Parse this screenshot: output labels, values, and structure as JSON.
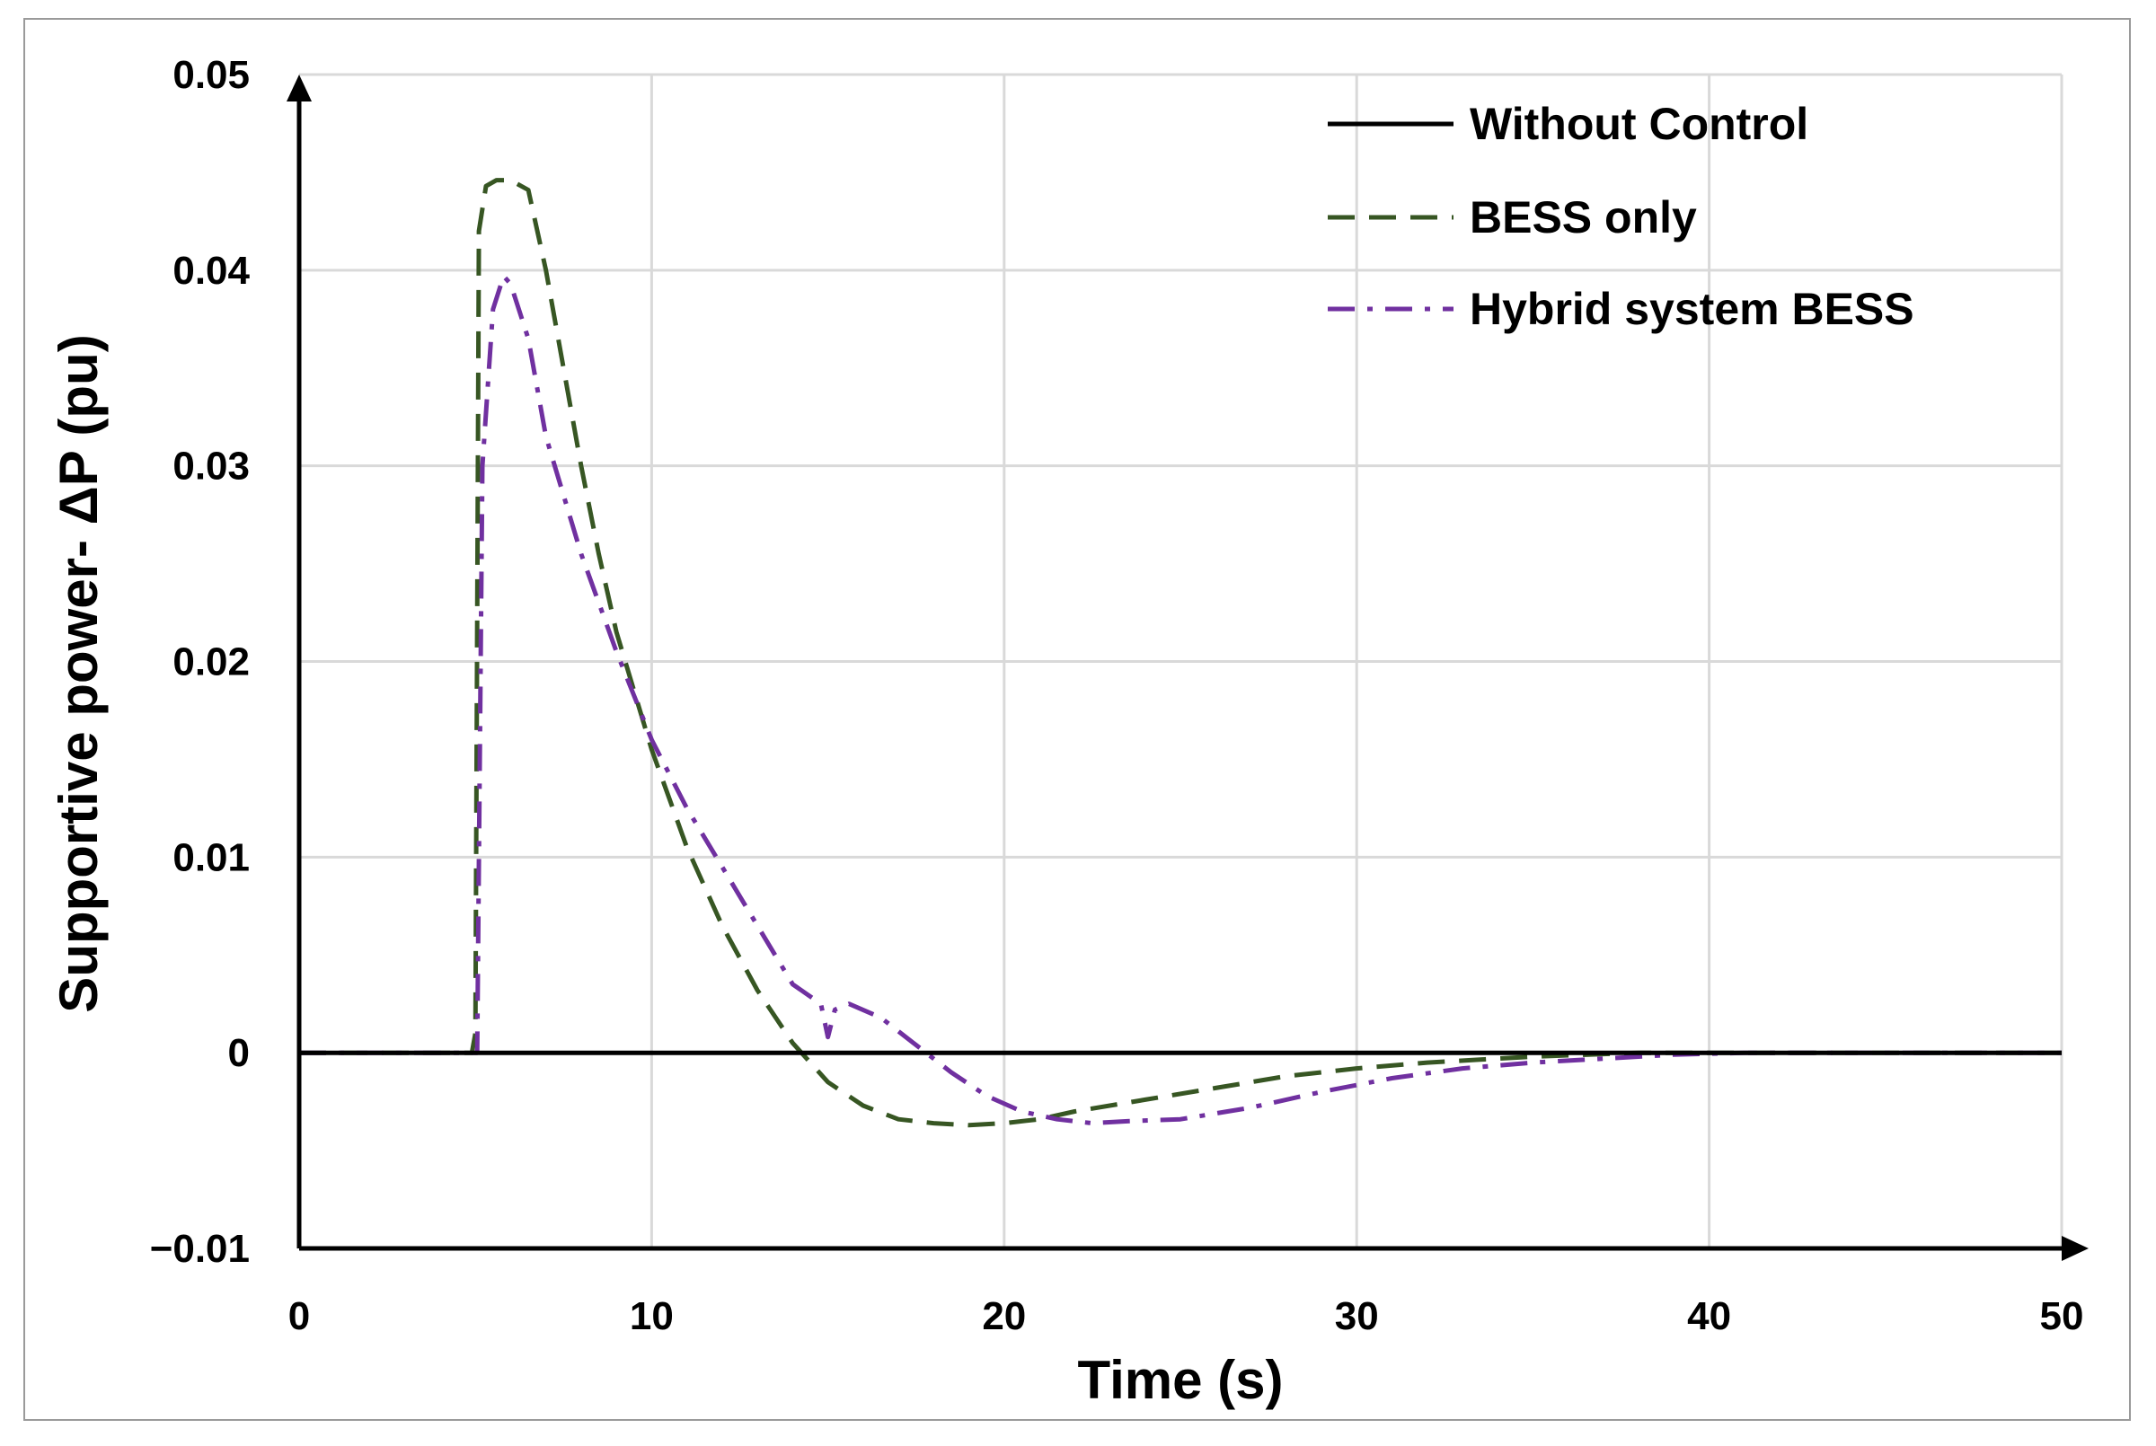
{
  "chart_data": {
    "type": "line",
    "title": "",
    "xlabel": "Time (s)",
    "ylabel": "Supportive power- ΔP (pu)",
    "xlim": [
      0,
      50
    ],
    "ylim": [
      -0.01,
      0.05
    ],
    "x_ticks": [
      0,
      10,
      20,
      30,
      40,
      50
    ],
    "y_ticks": [
      -0.01,
      0,
      0.01,
      0.02,
      0.03,
      0.04,
      0.05
    ],
    "x_tick_labels": [
      "0",
      "10",
      "20",
      "30",
      "40",
      "50"
    ],
    "y_tick_labels": [
      "−0.01",
      "0",
      "0.01",
      "0.02",
      "0.03",
      "0.04",
      "0.05"
    ],
    "grid": true,
    "legend_position": "top-right",
    "series": [
      {
        "name": "Without Control",
        "color": "#000000",
        "style": "solid",
        "x": [
          0,
          50
        ],
        "y": [
          0,
          0
        ]
      },
      {
        "name": "BESS only",
        "color": "#375623",
        "style": "dashed",
        "x": [
          0,
          4.9,
          5.0,
          5.1,
          5.3,
          5.6,
          6.0,
          6.5,
          7.0,
          7.5,
          8.0,
          8.5,
          9.0,
          10.0,
          11.0,
          12.0,
          13.0,
          14.0,
          15.0,
          16.0,
          17.0,
          18.0,
          19.0,
          20.0,
          21.0,
          22.0,
          24.0,
          26.0,
          28.0,
          30.0,
          32.0,
          35.0,
          38.0,
          40.0,
          45.0,
          50.0
        ],
        "y": [
          0,
          0,
          0.001,
          0.042,
          0.0443,
          0.0446,
          0.0446,
          0.0441,
          0.04,
          0.035,
          0.03,
          0.0255,
          0.0215,
          0.0155,
          0.0105,
          0.0065,
          0.0032,
          0.0005,
          -0.0015,
          -0.0027,
          -0.0034,
          -0.0036,
          -0.0037,
          -0.0036,
          -0.0034,
          -0.003,
          -0.0024,
          -0.0018,
          -0.0012,
          -0.0008,
          -0.0005,
          -0.0002,
          0,
          0,
          0,
          0
        ]
      },
      {
        "name": "Hybrid system BESS",
        "color": "#7030a0",
        "style": "dashdot",
        "x": [
          0,
          5.0,
          5.05,
          5.2,
          5.5,
          5.8,
          6.0,
          6.5,
          7.0,
          8.0,
          9.0,
          10.0,
          11.0,
          12.0,
          13.0,
          14.0,
          14.8,
          15.0,
          15.2,
          15.6,
          16.5,
          17.5,
          18.5,
          19.5,
          20.5,
          21.5,
          22.5,
          23.5,
          25.0,
          27.0,
          29.0,
          31.0,
          33.0,
          35.0,
          37.0,
          39.0,
          41.0,
          45.0,
          50.0
        ],
        "y": [
          0,
          0,
          0.0,
          0.03,
          0.038,
          0.0397,
          0.0393,
          0.0365,
          0.0315,
          0.0255,
          0.0205,
          0.016,
          0.0125,
          0.0095,
          0.0065,
          0.0035,
          0.0025,
          0.0008,
          0.0022,
          0.0025,
          0.0018,
          0.0004,
          -0.001,
          -0.0022,
          -0.003,
          -0.0034,
          -0.0036,
          -0.0035,
          -0.0034,
          -0.0028,
          -0.002,
          -0.0013,
          -0.0008,
          -0.0005,
          -0.0003,
          -0.0001,
          0,
          0,
          0
        ]
      }
    ]
  }
}
